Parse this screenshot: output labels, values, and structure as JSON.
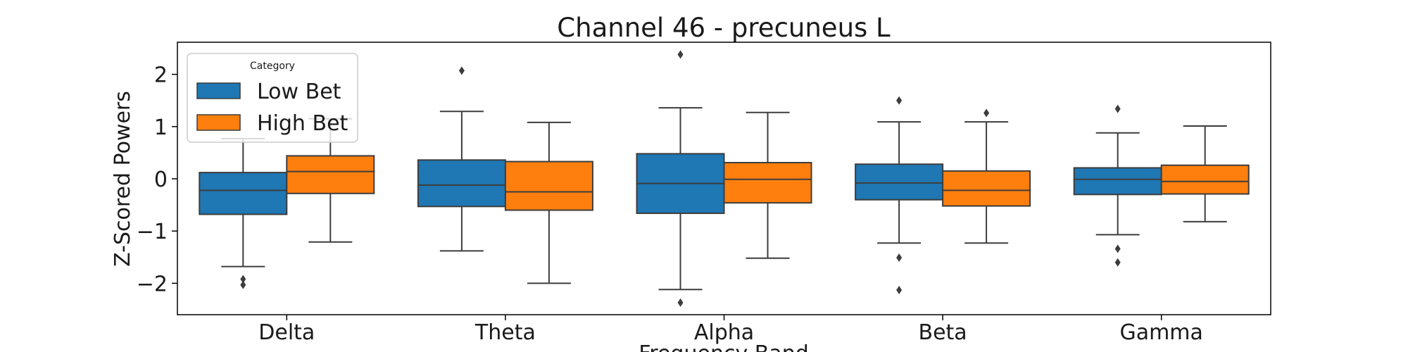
{
  "chart_data": {
    "type": "box",
    "title": "Channel 46 - precuneus L",
    "xlabel": "Frequency Band",
    "ylabel": "Z-Scored Powers",
    "ylim": [
      -2.6,
      2.6
    ],
    "yticks": [
      2,
      1,
      0,
      -1,
      -2
    ],
    "ytick_labels": [
      "2",
      "1",
      "0",
      "−1",
      "−2"
    ],
    "categories": [
      "Delta",
      "Theta",
      "Alpha",
      "Beta",
      "Gamma"
    ],
    "grid": false,
    "legend": {
      "title": "Category",
      "placement": "top-left"
    },
    "series": [
      {
        "name": "Low Bet",
        "color": "#1f77b4",
        "boxes": [
          {
            "whisker_low": -1.68,
            "q1": -0.68,
            "median": -0.22,
            "q3": 0.12,
            "whisker_high": 0.77,
            "outliers": [
              -1.92,
              -2.03
            ]
          },
          {
            "whisker_low": -1.38,
            "q1": -0.53,
            "median": -0.12,
            "q3": 0.36,
            "whisker_high": 1.29,
            "outliers": [
              2.07
            ]
          },
          {
            "whisker_low": -2.12,
            "q1": -0.66,
            "median": -0.09,
            "q3": 0.48,
            "whisker_high": 1.36,
            "outliers": [
              2.38,
              -2.37
            ]
          },
          {
            "whisker_low": -1.23,
            "q1": -0.4,
            "median": -0.08,
            "q3": 0.28,
            "whisker_high": 1.09,
            "outliers": [
              1.5,
              -1.51,
              -2.13
            ]
          },
          {
            "whisker_low": -1.07,
            "q1": -0.3,
            "median": -0.01,
            "q3": 0.21,
            "whisker_high": 0.88,
            "outliers": [
              1.34,
              -1.34,
              -1.6
            ]
          }
        ]
      },
      {
        "name": "High Bet",
        "color": "#ff7f0e",
        "boxes": [
          {
            "whisker_low": -1.21,
            "q1": -0.28,
            "median": 0.14,
            "q3": 0.44,
            "whisker_high": 1.15,
            "outliers": []
          },
          {
            "whisker_low": -2.0,
            "q1": -0.6,
            "median": -0.25,
            "q3": 0.33,
            "whisker_high": 1.08,
            "outliers": []
          },
          {
            "whisker_low": -1.52,
            "q1": -0.46,
            "median": -0.01,
            "q3": 0.31,
            "whisker_high": 1.27,
            "outliers": []
          },
          {
            "whisker_low": -1.23,
            "q1": -0.52,
            "median": -0.22,
            "q3": 0.15,
            "whisker_high": 1.09,
            "outliers": [
              1.26
            ]
          },
          {
            "whisker_low": -0.82,
            "q1": -0.29,
            "median": -0.05,
            "q3": 0.26,
            "whisker_high": 1.01,
            "outliers": []
          }
        ]
      }
    ]
  }
}
